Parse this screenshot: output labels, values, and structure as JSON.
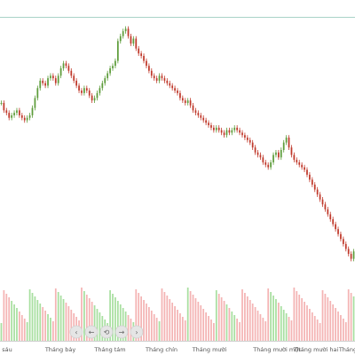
{
  "colors": {
    "up": "#5d9c3a",
    "down": "#c0392b",
    "volume_up": "#a8dfa0",
    "volume_down": "#f4b4b4",
    "top_border": "#a9d3c7",
    "axis_line": "#cfcfcf",
    "nav_button": "#e5e5e5",
    "nav_button_stroke": "#d0d0d0"
  },
  "navigation": {
    "buttons": [
      {
        "icon": "chevron-left-icon",
        "glyph": "‹"
      },
      {
        "icon": "arrow-left-icon",
        "glyph": "←"
      },
      {
        "icon": "reset-icon",
        "glyph": "⟲"
      },
      {
        "icon": "arrow-right-icon",
        "glyph": "→"
      },
      {
        "icon": "chevron-right-icon",
        "glyph": "›"
      }
    ]
  },
  "chart_data": {
    "type": "candlestick",
    "title": "",
    "x_tick_labels": [
      "sáu",
      "Tháng bảy",
      "Tháng tám",
      "Tháng chín",
      "Tháng mười",
      "Tháng mười một",
      "Tháng mười hai",
      "Tháng"
    ],
    "close": [
      218,
      212,
      210,
      206,
      208,
      210,
      212,
      208,
      206,
      204,
      206,
      208,
      214,
      222,
      230,
      236,
      234,
      232,
      238,
      240,
      238,
      234,
      240,
      246,
      250,
      248,
      244,
      240,
      236,
      232,
      228,
      226,
      230,
      228,
      224,
      220,
      222,
      226,
      230,
      234,
      238,
      242,
      246,
      248,
      252,
      268,
      272,
      276,
      278,
      272,
      266,
      270,
      262,
      258,
      256,
      252,
      248,
      244,
      240,
      238,
      236,
      240,
      238,
      236,
      234,
      232,
      230,
      228,
      226,
      222,
      220,
      218,
      220,
      216,
      212,
      210,
      208,
      206,
      204,
      202,
      200,
      198,
      196,
      198,
      196,
      194,
      192,
      196,
      194,
      196,
      198,
      196,
      194,
      192,
      190,
      188,
      186,
      182,
      178,
      176,
      174,
      170,
      168,
      166,
      170,
      176,
      178,
      174,
      180,
      186,
      190,
      182,
      176,
      172,
      170,
      168,
      166,
      164,
      160,
      156,
      152,
      148,
      144,
      140,
      136,
      132,
      128,
      124,
      120,
      116,
      112,
      108,
      104,
      100,
      96,
      92,
      98
    ],
    "x_range": [
      0,
      137
    ],
    "grid": false,
    "legend": "none",
    "y_axis": "none",
    "volume_panel": true
  }
}
